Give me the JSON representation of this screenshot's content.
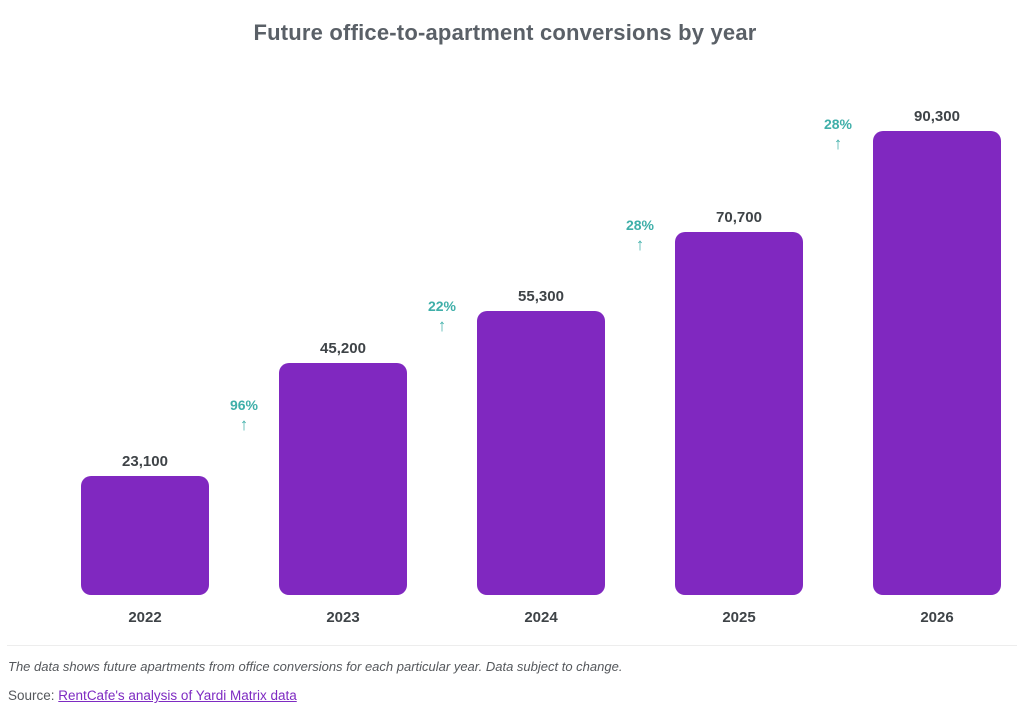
{
  "title": "Future office-to-apartment conversions by year",
  "chart_data": {
    "type": "bar",
    "title": "Future office-to-apartment conversions by year",
    "categories": [
      "2022",
      "2023",
      "2024",
      "2025",
      "2026"
    ],
    "values": [
      23100,
      45200,
      55300,
      70700,
      90300
    ],
    "value_labels": [
      "23,100",
      "45,200",
      "55,300",
      "70,700",
      "90,300"
    ],
    "pct_changes": [
      null,
      "96%",
      "22%",
      "28%",
      "28%"
    ],
    "arrow_icon": "↑",
    "bar_color": "#8028c0",
    "pct_color": "#3fafa9",
    "value_label_color": "#3e4347",
    "xlabel": "",
    "ylabel": "",
    "ylim": [
      0,
      90300
    ],
    "grid": false,
    "legend": false
  },
  "footer": {
    "note": "The data shows future apartments from office conversions for each particular year. Data subject to change.",
    "source_label": "Source:",
    "source_link": "RentCafe's analysis of Yardi Matrix data"
  }
}
